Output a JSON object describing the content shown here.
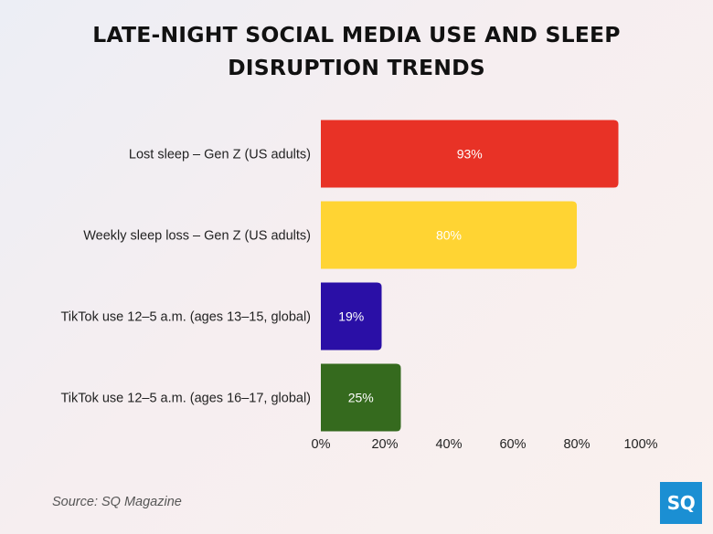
{
  "title_line1": "LATE-NIGHT SOCIAL MEDIA USE AND SLEEP",
  "title_line2": "DISRUPTION TRENDS",
  "source": "Source: SQ Magazine",
  "logo_text": "SQ",
  "chart_data": {
    "type": "bar",
    "orientation": "horizontal",
    "title": "LATE-NIGHT SOCIAL MEDIA USE AND SLEEP DISRUPTION TRENDS",
    "categories": [
      "Lost sleep – Gen Z (US adults)",
      "Weekly sleep loss – Gen Z (US adults)",
      "TikTok use 12–5 a.m. (ages 13–15, global)",
      "TikTok use 12–5 a.m. (ages 16–17, global)"
    ],
    "values": [
      93,
      80,
      19,
      25
    ],
    "value_labels": [
      "93%",
      "80%",
      "19%",
      "25%"
    ],
    "bar_colors": [
      "#e83226",
      "#ffd433",
      "#2a0fa6",
      "#356a1e"
    ],
    "xlim": [
      0,
      100
    ],
    "x_ticks": [
      0,
      20,
      40,
      60,
      80,
      100
    ],
    "x_tick_labels": [
      "0%",
      "20%",
      "40%",
      "60%",
      "80%",
      "100%"
    ],
    "grid": false,
    "xlabel": "",
    "ylabel": ""
  }
}
